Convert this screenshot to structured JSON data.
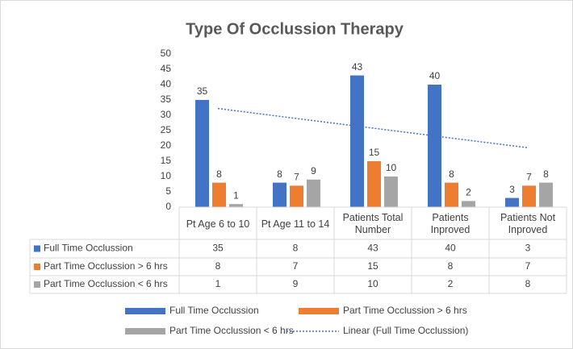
{
  "chart_data": {
    "type": "bar",
    "title": "Type Of Occlussion Therapy",
    "categories": [
      "Pt Age 6 to 10",
      "Pt Age 11 to 14",
      "Patients Total Number",
      "Patients Inproved",
      "Patients Not Inproved"
    ],
    "series": [
      {
        "name": "Full Time Occlussion",
        "color": "#4472c4",
        "values": [
          35,
          8,
          43,
          40,
          3
        ]
      },
      {
        "name": "Part Time Occlussion > 6 hrs",
        "color": "#ed7d31",
        "values": [
          8,
          7,
          15,
          8,
          7
        ]
      },
      {
        "name": "Part Time Occlussion <  6 hrs",
        "color": "#a5a5a5",
        "values": [
          1,
          9,
          10,
          2,
          8
        ]
      }
    ],
    "trendline": {
      "name": "Linear (Full Time Occlussion)",
      "series": 0,
      "color": "#4472c4"
    },
    "ylim": [
      0,
      50
    ],
    "yticks": [
      0,
      5,
      10,
      15,
      20,
      25,
      30,
      35,
      40,
      45,
      50
    ],
    "grid": false,
    "data_table": true,
    "legend": "bottom"
  }
}
